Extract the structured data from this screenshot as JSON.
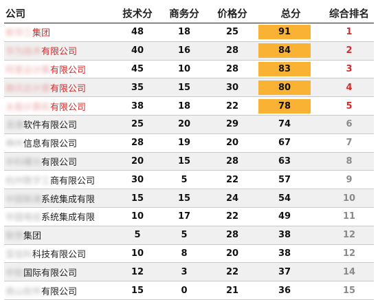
{
  "headers": {
    "company": "公司",
    "tech": "技术分",
    "business": "商务分",
    "price": "价格分",
    "total": "总分",
    "rank": "综合排名"
  },
  "colors": {
    "highlight_fill": "#f9b233",
    "top_text": "#d42a2a",
    "rest_rank": "#8a8a8a"
  },
  "rows": [
    {
      "company_blur": "新华三",
      "company_suffix": "集团",
      "tech": "48",
      "business": "18",
      "price": "25",
      "total": "91",
      "rank": "1",
      "top": true
    },
    {
      "company_blur": "华为技术",
      "company_suffix": "有限公司",
      "tech": "40",
      "business": "16",
      "price": "28",
      "total": "84",
      "rank": "2",
      "top": true
    },
    {
      "company_blur": "阿里云计算",
      "company_suffix": "有限公司",
      "tech": "45",
      "business": "10",
      "price": "28",
      "total": "83",
      "rank": "3",
      "top": true
    },
    {
      "company_blur": "腾讯云计算",
      "company_suffix": "有限公司",
      "tech": "35",
      "business": "15",
      "price": "30",
      "total": "80",
      "rank": "4",
      "top": true
    },
    {
      "company_blur": "太极计算机",
      "company_suffix": "有限公司",
      "tech": "38",
      "business": "18",
      "price": "22",
      "total": "78",
      "rank": "5",
      "top": true
    },
    {
      "company_blur": "浪潮",
      "company_suffix": "软件有限公司",
      "tech": "25",
      "business": "20",
      "price": "29",
      "total": "74",
      "rank": "6",
      "top": false
    },
    {
      "company_blur": "神州",
      "company_suffix": "信息有限公司",
      "tech": "28",
      "business": "19",
      "price": "20",
      "total": "67",
      "rank": "7",
      "top": false
    },
    {
      "company_blur": "中科曙光",
      "company_suffix": "有限公司",
      "tech": "20",
      "business": "15",
      "price": "28",
      "total": "63",
      "rank": "8",
      "top": false
    },
    {
      "company_blur": "杭州数字工",
      "company_suffix": "商有限公司",
      "tech": "30",
      "business": "5",
      "price": "22",
      "total": "57",
      "rank": "9",
      "top": false
    },
    {
      "company_blur": "中国联通",
      "company_suffix": "系统集成有限",
      "tech": "15",
      "business": "15",
      "price": "24",
      "total": "54",
      "rank": "10",
      "top": false
    },
    {
      "company_blur": "中国电信",
      "company_suffix": "系统集成有限",
      "tech": "10",
      "business": "17",
      "price": "22",
      "total": "49",
      "rank": "11",
      "top": false
    },
    {
      "company_blur": "联想",
      "company_suffix": "集团",
      "tech": "5",
      "business": "5",
      "price": "28",
      "total": "38",
      "rank": "12",
      "top": false
    },
    {
      "company_blur": "亚信科",
      "company_suffix": "科技有限公司",
      "tech": "10",
      "business": "8",
      "price": "20",
      "total": "38",
      "rank": "12",
      "top": false
    },
    {
      "company_blur": "中软",
      "company_suffix": "国际有限公司",
      "tech": "12",
      "business": "3",
      "price": "22",
      "total": "37",
      "rank": "14",
      "top": false
    },
    {
      "company_blur": "南山软件",
      "company_suffix": "有限公司",
      "tech": "15",
      "business": "0",
      "price": "21",
      "total": "36",
      "rank": "15",
      "top": false
    }
  ]
}
